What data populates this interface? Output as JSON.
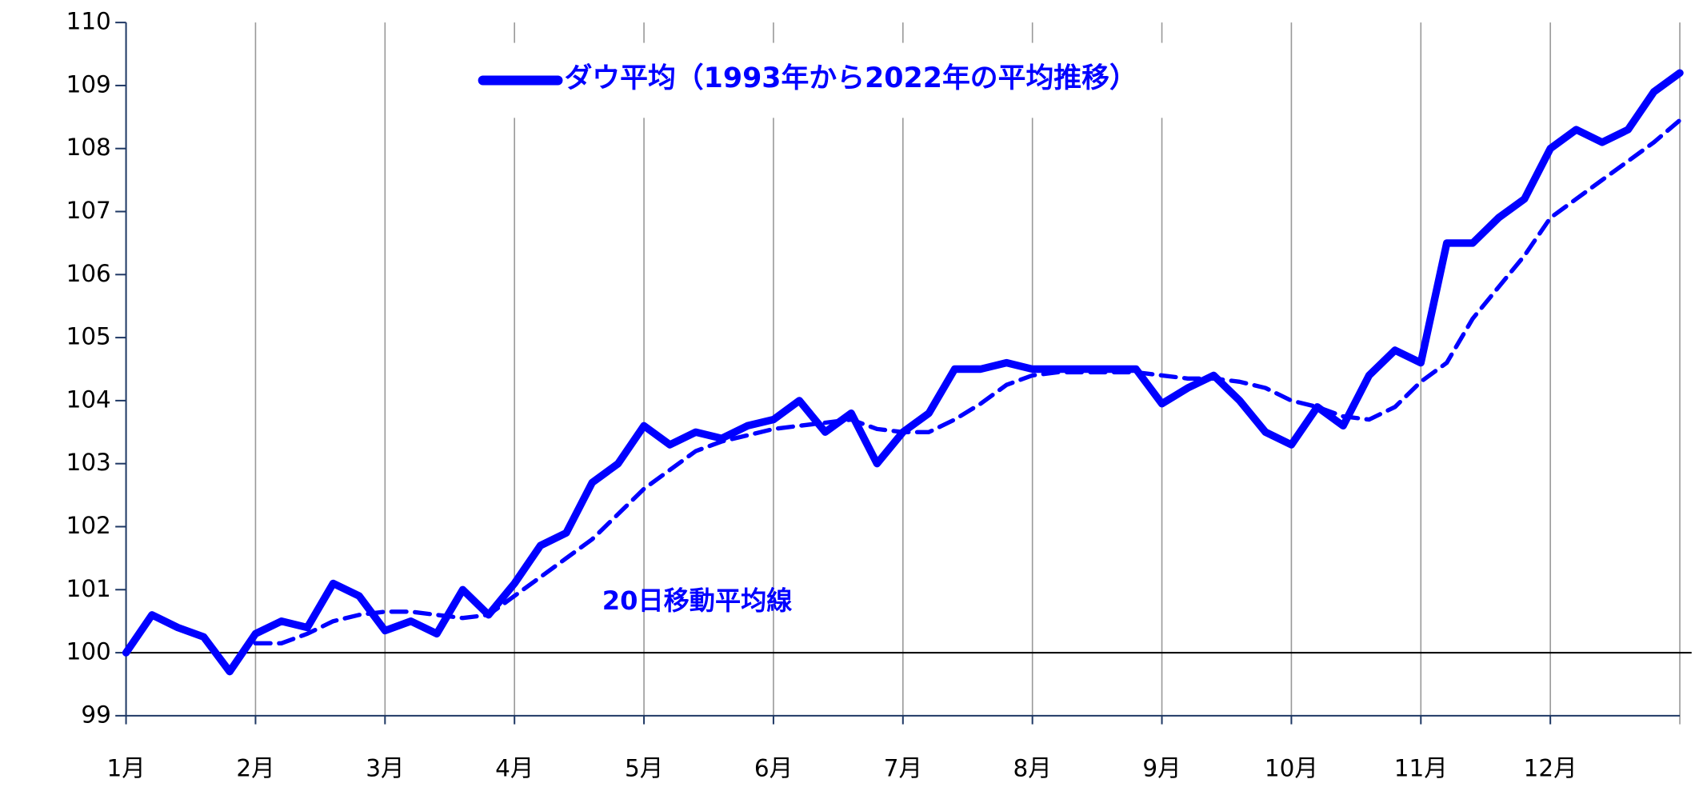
{
  "chart_data": {
    "type": "line",
    "categories": [
      "1月",
      null,
      null,
      null,
      null,
      "2月",
      null,
      null,
      null,
      null,
      "3月",
      null,
      null,
      null,
      null,
      "4月",
      null,
      null,
      null,
      null,
      "5月",
      null,
      null,
      null,
      null,
      "6月",
      null,
      null,
      null,
      null,
      "7月",
      null,
      null,
      null,
      null,
      "8月",
      null,
      null,
      null,
      null,
      "9月",
      null,
      null,
      null,
      null,
      "10月",
      null,
      null,
      null,
      null,
      "11月",
      null,
      null,
      null,
      null,
      "12月",
      null,
      null,
      null,
      null,
      null
    ],
    "series": [
      {
        "name": "ダウ平均（1993年から2022年の平均推移）",
        "color": "#0000ff",
        "style": "solid",
        "values": [
          100.0,
          100.6,
          100.4,
          100.25,
          99.7,
          100.3,
          100.5,
          100.4,
          101.1,
          100.9,
          100.35,
          100.5,
          100.3,
          101.0,
          100.6,
          101.1,
          101.7,
          101.9,
          102.7,
          103.0,
          103.6,
          103.3,
          103.5,
          103.4,
          103.6,
          103.7,
          104.0,
          103.5,
          103.8,
          103.0,
          103.5,
          103.8,
          104.5,
          104.5,
          104.6,
          104.5,
          104.5,
          104.5,
          104.5,
          104.5,
          103.95,
          104.2,
          104.4,
          104.0,
          103.5,
          103.3,
          103.9,
          103.6,
          104.4,
          104.8,
          104.6,
          106.5,
          106.5,
          106.9,
          107.2,
          108.0,
          108.3,
          108.1,
          108.3,
          108.9,
          109.2
        ]
      },
      {
        "name": "20日移動平均線",
        "color": "#0000ff",
        "style": "dashed",
        "values": [
          null,
          null,
          null,
          null,
          null,
          100.15,
          100.15,
          100.3,
          100.5,
          100.6,
          100.65,
          100.65,
          100.6,
          100.55,
          100.6,
          100.9,
          101.2,
          101.5,
          101.8,
          102.2,
          102.6,
          102.9,
          103.2,
          103.35,
          103.45,
          103.55,
          103.6,
          103.65,
          103.7,
          103.55,
          103.5,
          103.5,
          103.7,
          103.95,
          104.25,
          104.4,
          104.45,
          104.45,
          104.45,
          104.45,
          104.4,
          104.35,
          104.35,
          104.3,
          104.2,
          104.0,
          103.9,
          103.75,
          103.7,
          103.9,
          104.3,
          104.6,
          105.3,
          105.8,
          106.3,
          106.9,
          107.2,
          107.5,
          107.8,
          108.1,
          108.45
        ]
      }
    ],
    "ylim": [
      99,
      110
    ],
    "yticks": [
      99,
      100,
      101,
      102,
      103,
      104,
      105,
      106,
      107,
      108,
      109,
      110
    ],
    "baseline": 100,
    "grid": "x"
  }
}
